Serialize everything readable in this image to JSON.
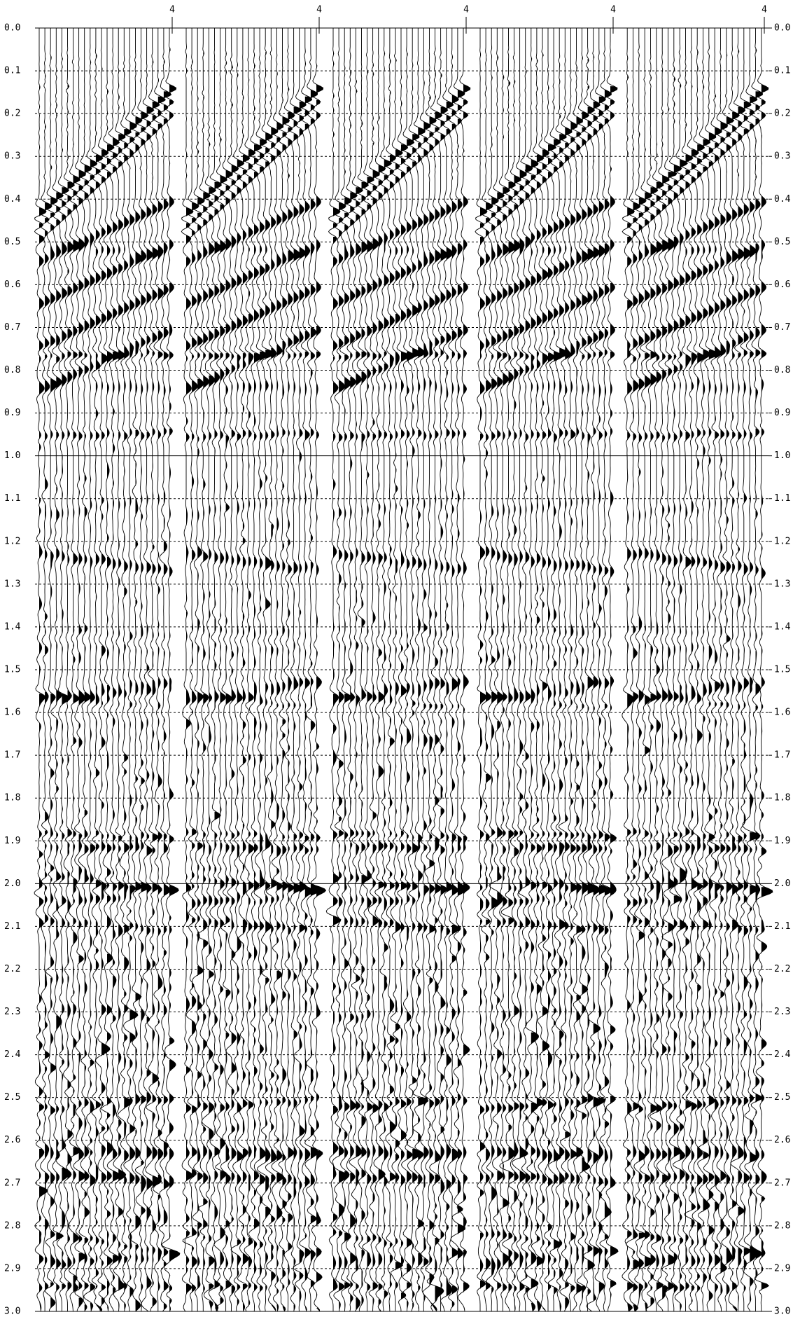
{
  "chart_data": {
    "type": "seismic",
    "ylim": [
      0,
      3
    ],
    "yticks": [
      {
        "value": 0,
        "label": "0.0"
      },
      0.1,
      0.2,
      0.3,
      0.4,
      0.5,
      0.6,
      0.7,
      0.8,
      0.9,
      {
        "value": 1,
        "label": "1.0"
      },
      1.1,
      1.2,
      1.3,
      1.4,
      1.5,
      1.6,
      1.7,
      1.8,
      1.9,
      {
        "value": 2,
        "label": "2.0"
      },
      2.1,
      2.2,
      2.3,
      2.4,
      2.5,
      2.6,
      2.7,
      2.8,
      2.9,
      {
        "value": 3,
        "label": "3.0"
      }
    ],
    "y2lim": [
      0,
      3
    ],
    "y2ticks": [
      {
        "value": 0,
        "label": "0.0"
      },
      0.1,
      0.2,
      0.3,
      0.4,
      0.5,
      0.6,
      0.7,
      0.8,
      0.9,
      {
        "value": 1,
        "label": "1.0"
      },
      1.1,
      1.2,
      1.3,
      1.4,
      1.5,
      1.6,
      1.7,
      1.8,
      1.9,
      {
        "value": 2,
        "label": "2.0"
      },
      2.1,
      2.2,
      2.3,
      2.4,
      2.5,
      2.6,
      2.7,
      2.8,
      2.9,
      {
        "value": 3,
        "label": "3.0"
      }
    ],
    "panel_labels": [
      "4",
      "4",
      "4",
      "4",
      "4"
    ],
    "grid": true,
    "color": "#000000"
  }
}
